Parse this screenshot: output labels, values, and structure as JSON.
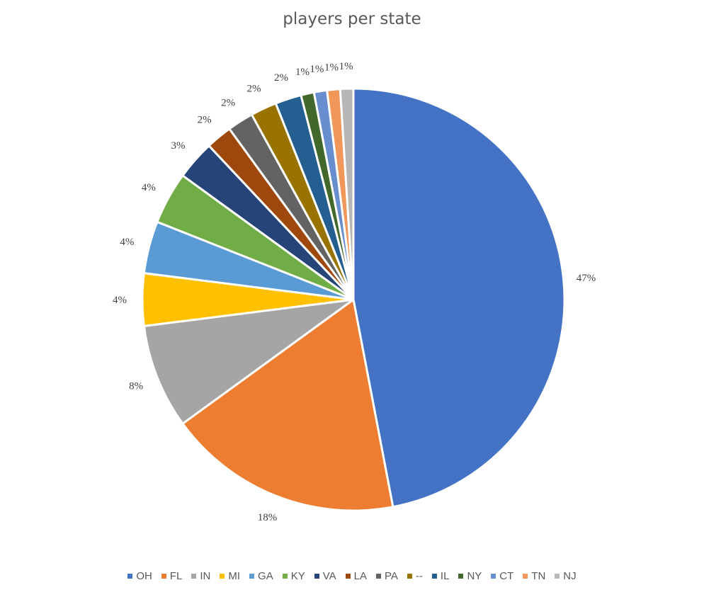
{
  "chart_data": {
    "type": "pie",
    "title": "players per state",
    "categories": [
      "OH",
      "FL",
      "IN",
      "MI",
      "GA",
      "KY",
      "VA",
      "LA",
      "PA",
      "--",
      "IL",
      "NY",
      "CT",
      "TN",
      "NJ"
    ],
    "values": [
      47,
      18,
      8,
      4,
      4,
      4,
      3,
      2,
      2,
      2,
      2,
      1,
      1,
      1,
      1
    ],
    "labels": [
      "47%",
      "18%",
      "8%",
      "4%",
      "4%",
      "4%",
      "3%",
      "2%",
      "2%",
      "2%",
      "2%",
      "1%",
      "1%",
      "1%",
      "1%"
    ],
    "colors": [
      "#4472C4",
      "#ED7D31",
      "#A5A5A5",
      "#FFC000",
      "#5B9BD5",
      "#70AD47",
      "#264478",
      "#9E480E",
      "#636363",
      "#997300",
      "#255E91",
      "#43682B",
      "#698ED0",
      "#F1975A",
      "#B7B7B7"
    ],
    "start_angle_deg": 0,
    "direction": "clockwise",
    "legend_position": "bottom"
  }
}
